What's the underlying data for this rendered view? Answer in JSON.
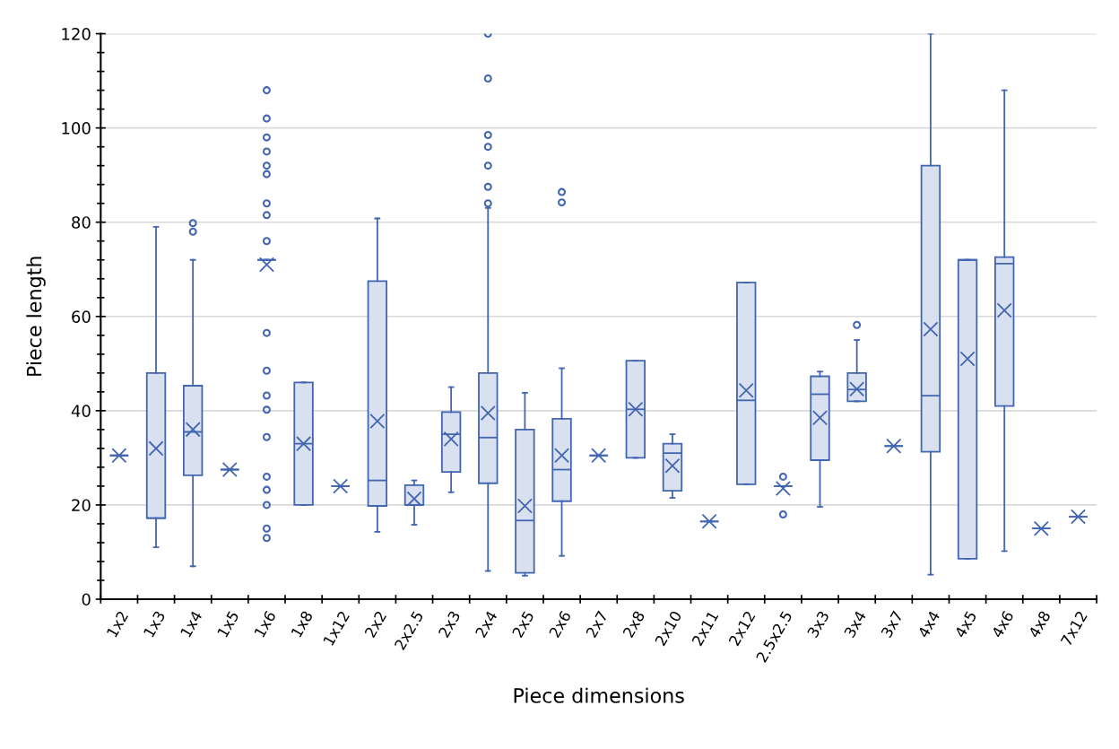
{
  "chart_data": {
    "type": "box",
    "xlabel": "Piece dimensions",
    "ylabel": "Piece length",
    "categories": [
      "1x2",
      "1x3",
      "1x4",
      "1x5",
      "1x6",
      "1x8",
      "1x12",
      "2x2",
      "2x2.5",
      "2x3",
      "2x4",
      "2x5",
      "2x6",
      "2x7",
      "2x8",
      "2x10",
      "2x11",
      "2x12",
      "2.5x2.5",
      "3x3",
      "3x4",
      "3x7",
      "4x4",
      "4x5",
      "4x6",
      "4x8",
      "7x12"
    ],
    "color": "#4266b0",
    "boxes": [
      {
        "low": 30.5,
        "q1": 30.5,
        "median": 30.5,
        "q3": 30.5,
        "high": 30.5,
        "mean": 30.5
      },
      {
        "low": 11,
        "q1": 17.2,
        "median": 17.2,
        "q3": 48,
        "high": 79,
        "mean": 32
      },
      {
        "low": 7,
        "q1": 26.3,
        "median": 35.5,
        "q3": 45.3,
        "high": 72,
        "mean": 36,
        "outliers": [
          78,
          79.8
        ]
      },
      {
        "low": 27.5,
        "q1": 27.5,
        "median": 27.5,
        "q3": 27.5,
        "high": 27.5,
        "mean": 27.5
      },
      {
        "low": 72,
        "q1": 72,
        "median": 72,
        "q3": 72,
        "high": 72,
        "mean": 71,
        "outliers": [
          108,
          102,
          98,
          95,
          92,
          90.2,
          84,
          81.5,
          76,
          56.5,
          48.5,
          43.2,
          40.2,
          34.4,
          26,
          23.2,
          20,
          15,
          13
        ]
      },
      {
        "low": 20,
        "q1": 20,
        "median": 33,
        "q3": 46,
        "high": 46,
        "mean": 33
      },
      {
        "low": 24,
        "q1": 24,
        "median": 24,
        "q3": 24,
        "high": 24,
        "mean": 24
      },
      {
        "low": 14.3,
        "q1": 19.8,
        "median": 25.2,
        "q3": 67.5,
        "high": 80.8,
        "mean": 37.8
      },
      {
        "low": 15.8,
        "q1": 20,
        "median": 20,
        "q3": 24.2,
        "high": 25.2,
        "mean": 21.3
      },
      {
        "low": 22.7,
        "q1": 27,
        "median": 35,
        "q3": 39.7,
        "high": 45,
        "mean": 34
      },
      {
        "low": 6,
        "q1": 24.6,
        "median": 34.3,
        "q3": 48,
        "high": 83,
        "mean": 39.5,
        "outliers": [
          120,
          110.5,
          98.5,
          96,
          92,
          87.5,
          84
        ]
      },
      {
        "low": 5,
        "q1": 5.6,
        "median": 16.7,
        "q3": 36,
        "high": 43.8,
        "mean": 19.8
      },
      {
        "low": 9.2,
        "q1": 20.8,
        "median": 27.5,
        "q3": 38.3,
        "high": 49,
        "mean": 30.5,
        "outliers": [
          84.2,
          86.4
        ]
      },
      {
        "low": 30.5,
        "q1": 30.5,
        "median": 30.5,
        "q3": 30.5,
        "high": 30.5,
        "mean": 30.5
      },
      {
        "low": 30,
        "q1": 30,
        "median": 40.3,
        "q3": 50.6,
        "high": 50.6,
        "mean": 40.3
      },
      {
        "low": 21.5,
        "q1": 23,
        "median": 31,
        "q3": 33,
        "high": 35,
        "mean": 28.3
      },
      {
        "low": 16.5,
        "q1": 16.5,
        "median": 16.5,
        "q3": 16.5,
        "high": 16.5,
        "mean": 16.5
      },
      {
        "low": 24.4,
        "q1": 24.4,
        "median": 42.2,
        "q3": 67.2,
        "high": 67.2,
        "mean": 44.3
      },
      {
        "low": 24,
        "q1": 24,
        "median": 24,
        "q3": 24,
        "high": 24,
        "mean": 23.5,
        "outliers": [
          26,
          18
        ]
      },
      {
        "low": 19.6,
        "q1": 29.5,
        "median": 43.5,
        "q3": 47.3,
        "high": 48.3,
        "mean": 38.5
      },
      {
        "low": 42,
        "q1": 42,
        "median": 44.5,
        "q3": 48,
        "high": 55,
        "mean": 44.6,
        "outliers": [
          58.2
        ]
      },
      {
        "low": 32.5,
        "q1": 32.5,
        "median": 32.5,
        "q3": 32.5,
        "high": 32.5,
        "mean": 32.5
      },
      {
        "low": 5.2,
        "q1": 31.3,
        "median": 43.2,
        "q3": 92,
        "high": 120,
        "mean": 57.3
      },
      {
        "low": 8.6,
        "q1": 8.6,
        "median": 72,
        "q3": 72,
        "high": 72,
        "mean": 51
      },
      {
        "low": 10.2,
        "q1": 41,
        "median": 71.2,
        "q3": 72.6,
        "high": 108,
        "mean": 61.3
      },
      {
        "low": 15,
        "q1": 15,
        "median": 15,
        "q3": 15,
        "high": 15,
        "mean": 15
      },
      {
        "low": 17.5,
        "q1": 17.5,
        "median": 17.5,
        "q3": 17.5,
        "high": 17.5,
        "mean": 17.5
      }
    ],
    "ylim": [
      0,
      120
    ],
    "yticks": [
      0,
      {
        "value": 4,
        "label": null
      },
      {
        "value": 8,
        "label": null
      },
      {
        "value": 12,
        "label": null
      },
      {
        "value": 16,
        "label": null
      },
      20,
      {
        "value": 24,
        "label": null
      },
      {
        "value": 28,
        "label": null
      },
      {
        "value": 32,
        "label": null
      },
      {
        "value": 36,
        "label": null
      },
      40,
      {
        "value": 44,
        "label": null
      },
      {
        "value": 48,
        "label": null
      },
      {
        "value": 52,
        "label": null
      },
      {
        "value": 56,
        "label": null
      },
      60,
      {
        "value": 64,
        "label": null
      },
      {
        "value": 68,
        "label": null
      },
      {
        "value": 72,
        "label": null
      },
      {
        "value": 76,
        "label": null
      },
      80,
      {
        "value": 84,
        "label": null
      },
      {
        "value": 88,
        "label": null
      },
      {
        "value": 92,
        "label": null
      },
      {
        "value": 96,
        "label": null
      },
      100,
      {
        "value": 104,
        "label": null
      },
      {
        "value": 108,
        "label": null
      },
      {
        "value": 112,
        "label": null
      },
      {
        "value": 116,
        "label": null
      },
      120
    ],
    "grid": "y"
  }
}
